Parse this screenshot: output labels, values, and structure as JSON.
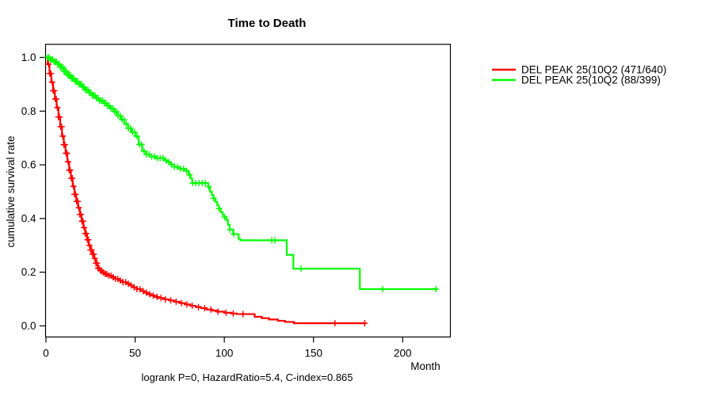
{
  "title": "Time to Death",
  "x_axis": {
    "label": "Month",
    "ticks": [
      0,
      50,
      100,
      150,
      200
    ]
  },
  "y_axis": {
    "label": "cumulative survival rate",
    "ticks": [
      0,
      0.2,
      0.4,
      0.6,
      0.8,
      1
    ]
  },
  "footnote": "logrank P=0, HazardRatio=5.4, C-index=0.865",
  "chart_data": {
    "type": "line",
    "subtype": "kaplan_meier_step",
    "title": "Time to Death",
    "xlabel": "Month",
    "ylabel": "cumulative survival rate",
    "xlim": [
      0,
      227
    ],
    "ylim": [
      0,
      1
    ],
    "x_ticks": [
      0,
      50,
      100,
      150,
      200
    ],
    "y_ticks": [
      0,
      0.2,
      0.4,
      0.6,
      0.8,
      1
    ],
    "grid": false,
    "legend_position": "right-outside",
    "annotation": "logrank P=0, HazardRatio=5.4, C-index=0.865",
    "series": [
      {
        "key": "red",
        "name": "DEL PEAK 25(10Q2 (471/640)",
        "color": "#ff0000",
        "end": 179.4,
        "points": [
          [
            0,
            1.0
          ],
          [
            1,
            0.975
          ],
          [
            2,
            0.94
          ],
          [
            3,
            0.908
          ],
          [
            4,
            0.876
          ],
          [
            5,
            0.845
          ],
          [
            6,
            0.813
          ],
          [
            7,
            0.778
          ],
          [
            8,
            0.742
          ],
          [
            9,
            0.707
          ],
          [
            10,
            0.675
          ],
          [
            11,
            0.643
          ],
          [
            12,
            0.611
          ],
          [
            13,
            0.58
          ],
          [
            14,
            0.55
          ],
          [
            15,
            0.52
          ],
          [
            16,
            0.49
          ],
          [
            17,
            0.464
          ],
          [
            18,
            0.44
          ],
          [
            19,
            0.415
          ],
          [
            20,
            0.39
          ],
          [
            21,
            0.366
          ],
          [
            22,
            0.344
          ],
          [
            23,
            0.321
          ],
          [
            24,
            0.3
          ],
          [
            25,
            0.283
          ],
          [
            26,
            0.267
          ],
          [
            27,
            0.251
          ],
          [
            28,
            0.234
          ],
          [
            29,
            0.215
          ],
          [
            30,
            0.206
          ],
          [
            31.5,
            0.199
          ],
          [
            33,
            0.193
          ],
          [
            35,
            0.187
          ],
          [
            37,
            0.181
          ],
          [
            39,
            0.175
          ],
          [
            41,
            0.169
          ],
          [
            43,
            0.163
          ],
          [
            45,
            0.157
          ],
          [
            47,
            0.151
          ],
          [
            49,
            0.144
          ],
          [
            51,
            0.137
          ],
          [
            53,
            0.13
          ],
          [
            55,
            0.124
          ],
          [
            57,
            0.118
          ],
          [
            59,
            0.113
          ],
          [
            61,
            0.108
          ],
          [
            63,
            0.104
          ],
          [
            66,
            0.099
          ],
          [
            69,
            0.095
          ],
          [
            72,
            0.09
          ],
          [
            75,
            0.085
          ],
          [
            78,
            0.08
          ],
          [
            81,
            0.075
          ],
          [
            84,
            0.07
          ],
          [
            87,
            0.066
          ],
          [
            90,
            0.061
          ],
          [
            93,
            0.057
          ],
          [
            96,
            0.053
          ],
          [
            100,
            0.049
          ],
          [
            104,
            0.046
          ],
          [
            107,
            0.044
          ],
          [
            117,
            0.034
          ],
          [
            121,
            0.029
          ],
          [
            125,
            0.024
          ],
          [
            130,
            0.019
          ],
          [
            134,
            0.015
          ],
          [
            139,
            0.01
          ]
        ],
        "censors": [
          1.4,
          2.1,
          2.8,
          3.4,
          4,
          4.6,
          5.2,
          5.8,
          6.4,
          7,
          7.6,
          8.2,
          8.8,
          9.4,
          10,
          10.6,
          11.2,
          11.8,
          12.4,
          13,
          13.6,
          14.2,
          14.8,
          15.4,
          16,
          16.6,
          17.2,
          17.8,
          18.4,
          19,
          19.6,
          20.2,
          20.8,
          21.4,
          22,
          22.6,
          23.2,
          23.8,
          24.4,
          25,
          25.6,
          26.2,
          26.8,
          27.4,
          28,
          28.6,
          29.2,
          29.8,
          30.5,
          31.3,
          32.2,
          33.2,
          34.2,
          35.3,
          36.5,
          37.7,
          39,
          40.3,
          41.7,
          43.2,
          44.7,
          46.2,
          47.8,
          49.4,
          51,
          52.7,
          54.5,
          56.3,
          58.2,
          60.2,
          62.3,
          64.5,
          67,
          70,
          73,
          76,
          79,
          82,
          85.5,
          89,
          92.5,
          96.5,
          101,
          105,
          110.5,
          162,
          178.7
        ]
      },
      {
        "key": "green",
        "name": "DEL PEAK 25(10Q2 (88/399)",
        "color": "#00ff00",
        "end": 219.4,
        "points": [
          [
            0,
            1.0
          ],
          [
            2,
            0.992
          ],
          [
            4,
            0.984
          ],
          [
            6,
            0.975
          ],
          [
            8,
            0.964
          ],
          [
            10,
            0.948
          ],
          [
            12,
            0.934
          ],
          [
            14,
            0.922
          ],
          [
            16,
            0.911
          ],
          [
            18,
            0.9
          ],
          [
            20,
            0.89
          ],
          [
            22,
            0.879
          ],
          [
            24,
            0.868
          ],
          [
            26,
            0.858
          ],
          [
            28,
            0.848
          ],
          [
            30,
            0.839
          ],
          [
            32,
            0.83
          ],
          [
            34,
            0.82
          ],
          [
            36,
            0.81
          ],
          [
            38,
            0.798
          ],
          [
            40,
            0.783
          ],
          [
            42,
            0.768
          ],
          [
            44,
            0.752
          ],
          [
            46,
            0.736
          ],
          [
            48,
            0.721
          ],
          [
            50,
            0.706
          ],
          [
            52,
            0.676
          ],
          [
            54,
            0.651
          ],
          [
            56,
            0.639
          ],
          [
            58,
            0.631
          ],
          [
            62,
            0.625
          ],
          [
            66,
            0.617
          ],
          [
            68,
            0.61
          ],
          [
            70,
            0.601
          ],
          [
            72,
            0.592
          ],
          [
            75,
            0.585
          ],
          [
            78,
            0.578
          ],
          [
            80,
            0.563
          ],
          [
            81,
            0.55
          ],
          [
            82,
            0.532
          ],
          [
            91,
            0.519
          ],
          [
            92,
            0.5
          ],
          [
            93,
            0.487
          ],
          [
            94,
            0.475
          ],
          [
            95,
            0.462
          ],
          [
            96,
            0.449
          ],
          [
            97,
            0.437
          ],
          [
            98,
            0.424
          ],
          [
            99,
            0.414
          ],
          [
            100,
            0.406
          ],
          [
            101,
            0.395
          ],
          [
            102,
            0.377
          ],
          [
            103,
            0.359
          ],
          [
            105,
            0.342
          ],
          [
            108,
            0.324
          ],
          [
            109,
            0.319
          ],
          [
            135,
            0.265
          ],
          [
            138.7,
            0.213
          ],
          [
            176,
            0.137
          ]
        ],
        "censors": [
          1,
          1.7,
          2.4,
          3.1,
          3.8,
          4.5,
          5.2,
          5.9,
          6.6,
          7.3,
          8,
          8.7,
          9.4,
          10.1,
          10.8,
          11.5,
          12.2,
          12.9,
          13.6,
          14.3,
          15,
          15.7,
          16.4,
          17.1,
          17.8,
          18.5,
          19.2,
          19.9,
          20.6,
          21.3,
          22,
          22.8,
          23.6,
          24.4,
          25.2,
          26,
          26.8,
          27.6,
          28.4,
          29.2,
          30,
          30.9,
          31.8,
          32.7,
          33.6,
          34.5,
          35.5,
          36.5,
          37.5,
          38.5,
          39.5,
          40.5,
          41.6,
          42.7,
          43.8,
          45,
          46.2,
          47.4,
          48.6,
          49.8,
          51,
          52.3,
          53.6,
          55,
          56.4,
          57.8,
          59.3,
          60.8,
          62.4,
          64,
          65.6,
          67.2,
          68.8,
          70.4,
          72,
          73.7,
          75.4,
          77.1,
          78.8,
          80.5,
          82.2,
          84,
          85.8,
          87.6,
          89.4,
          91.2,
          94,
          97,
          100.1,
          103.1,
          105.3,
          126.6,
          128.4,
          143,
          188.8,
          218.6
        ]
      }
    ]
  }
}
